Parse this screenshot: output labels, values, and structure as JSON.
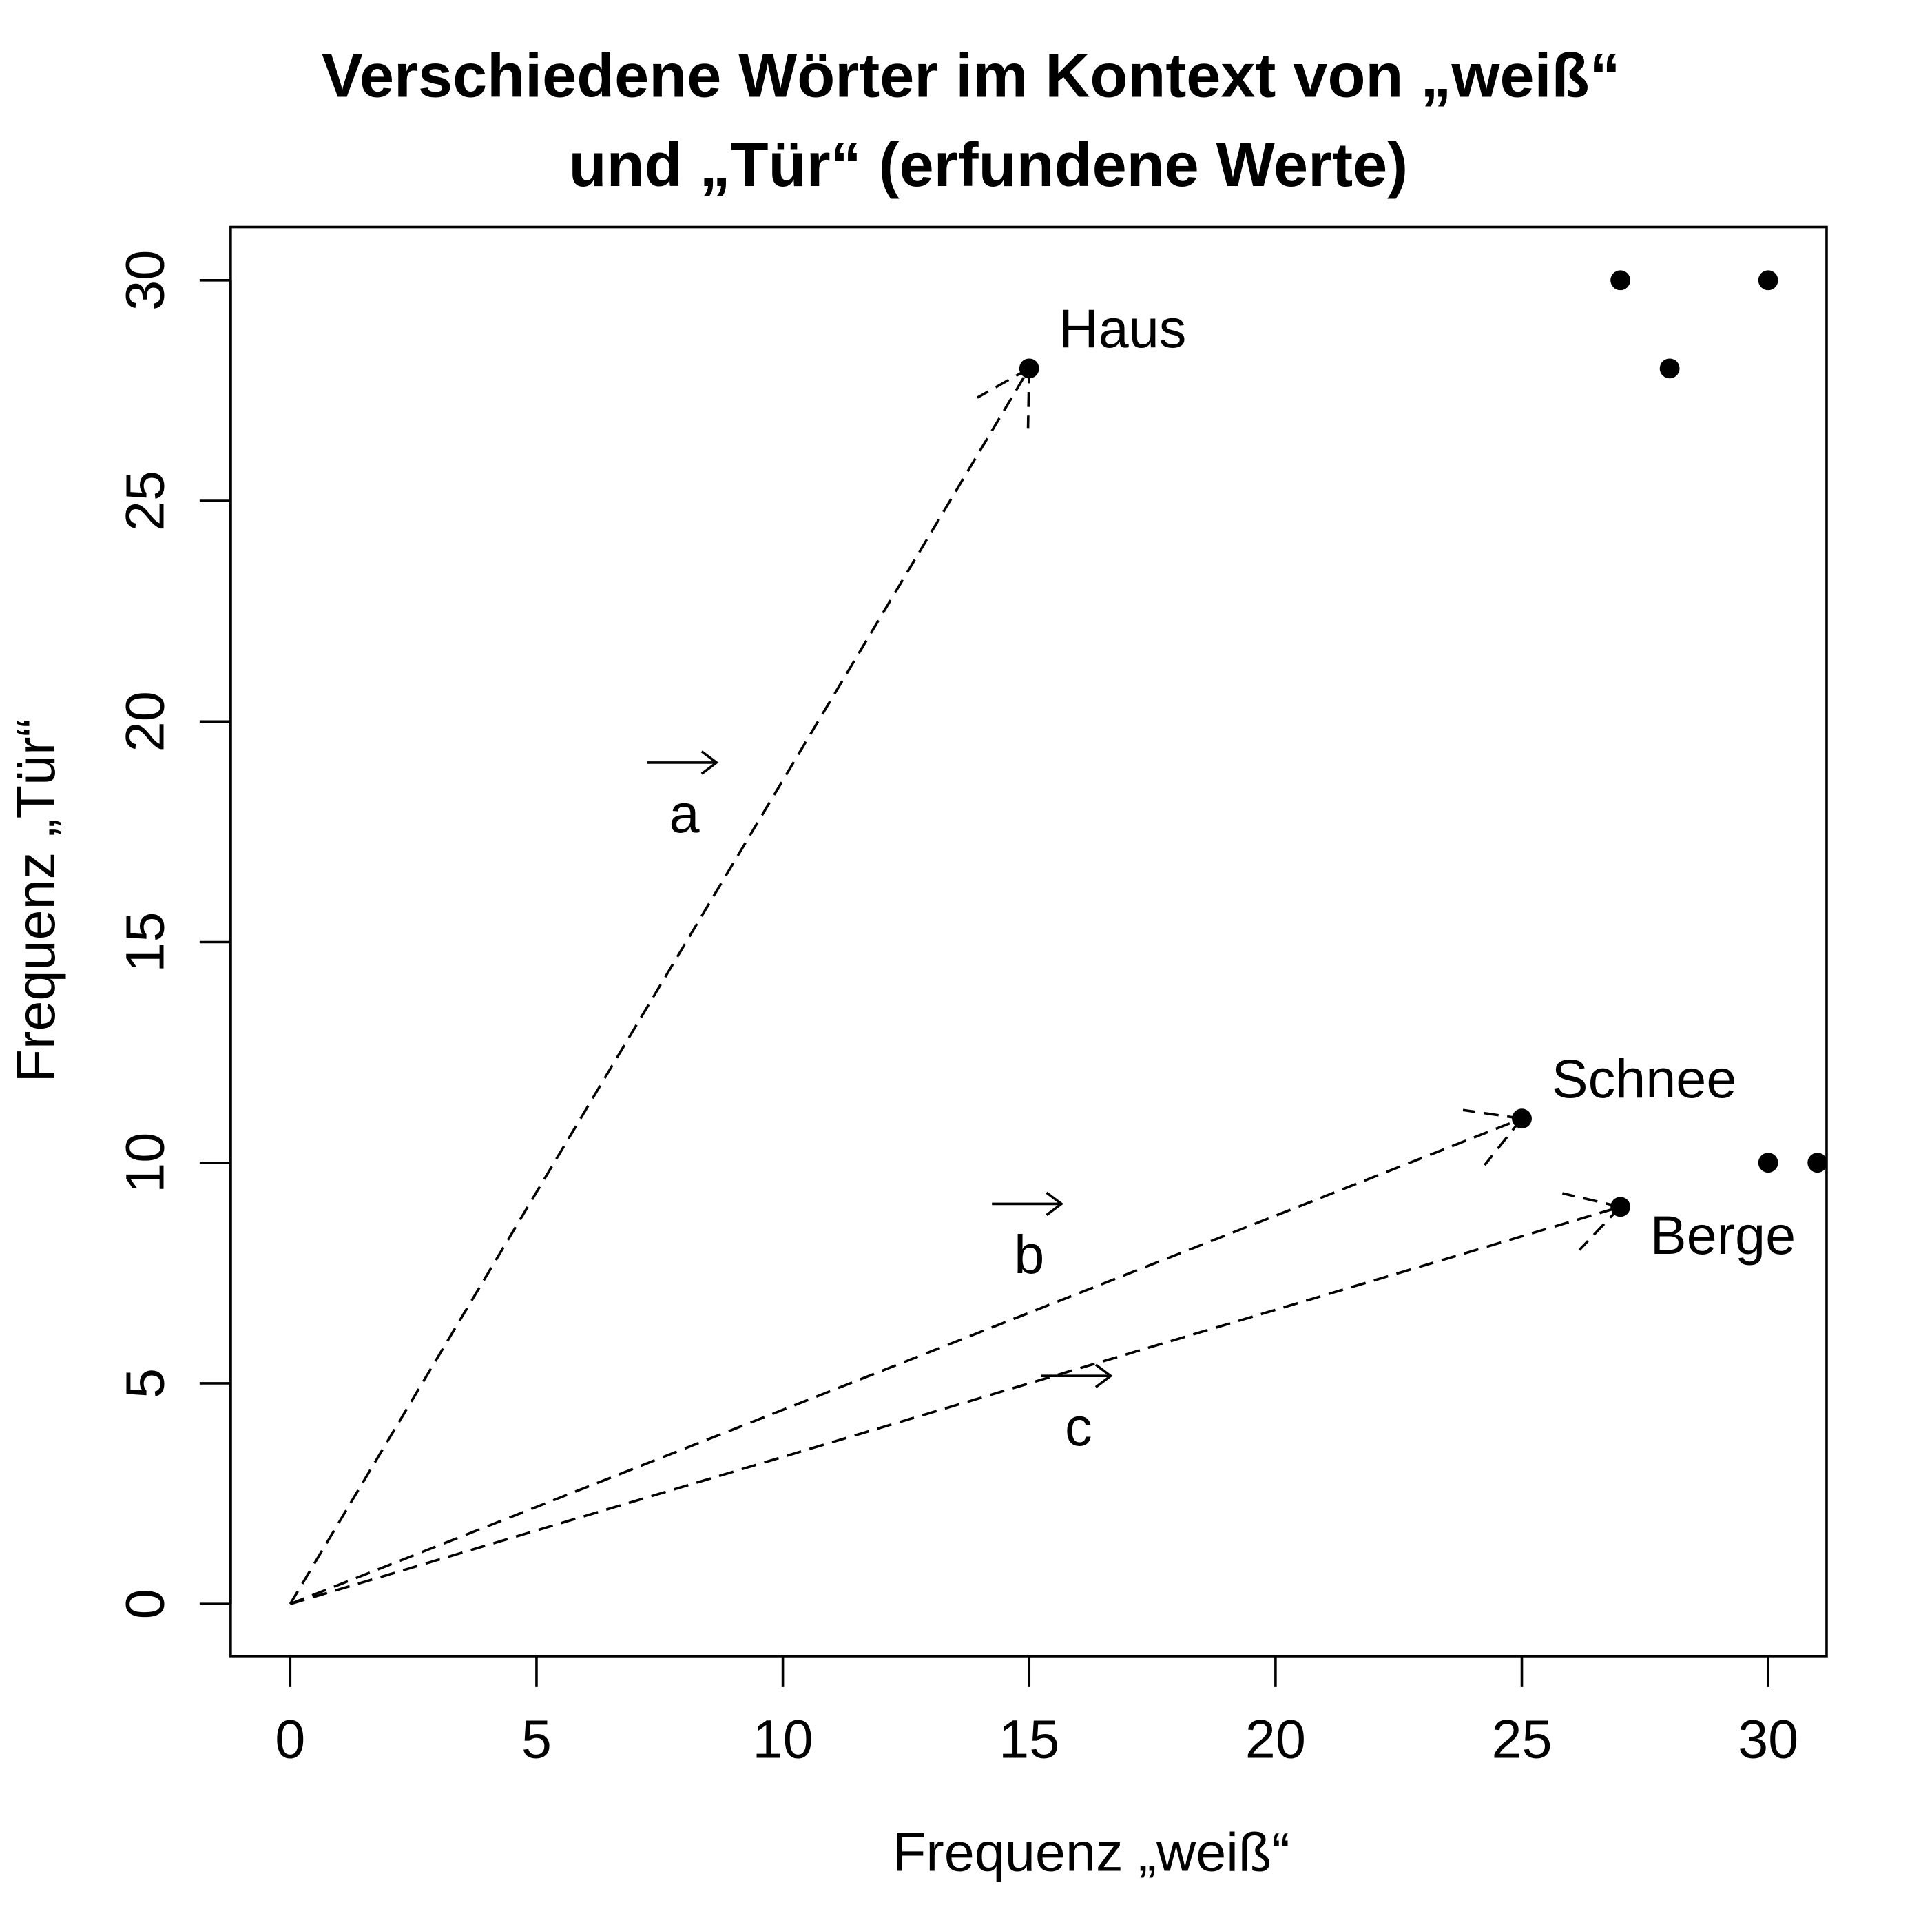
{
  "chart_data": {
    "type": "scatter",
    "title": "Verschiedene Wörter im Kontext von „weiß“",
    "title_line2": "und „Tür“ (erfundene Werte)",
    "xlabel": "Frequenz „weiß“",
    "ylabel": "Frequenz „Tür“",
    "xlim": [
      -1.2,
      31.2
    ],
    "ylim": [
      -1.2,
      31.2
    ],
    "xticks": [
      0,
      5,
      10,
      15,
      20,
      25,
      30
    ],
    "yticks": [
      0,
      5,
      10,
      15,
      20,
      25,
      30
    ],
    "grid": false,
    "points": [
      {
        "x": 15,
        "y": 28,
        "label": "Haus",
        "label_pos": "top-right"
      },
      {
        "x": 25,
        "y": 11,
        "label": "Schnee",
        "label_pos": "top-right"
      },
      {
        "x": 27,
        "y": 9,
        "label": "Berge",
        "label_pos": "bottom-right"
      },
      {
        "x": 27,
        "y": 30
      },
      {
        "x": 28,
        "y": 28
      },
      {
        "x": 30,
        "y": 30
      },
      {
        "x": 30,
        "y": 10
      },
      {
        "x": 31,
        "y": 10
      }
    ],
    "vectors": [
      {
        "from": [
          0,
          0
        ],
        "to": [
          15,
          28
        ],
        "label": "a",
        "label_at": [
          8,
          18
        ]
      },
      {
        "from": [
          0,
          0
        ],
        "to": [
          25,
          11
        ],
        "label": "b",
        "label_at": [
          15,
          8
        ]
      },
      {
        "from": [
          0,
          0
        ],
        "to": [
          27,
          9
        ],
        "label": "c",
        "label_at": [
          16,
          4.1
        ]
      }
    ]
  }
}
